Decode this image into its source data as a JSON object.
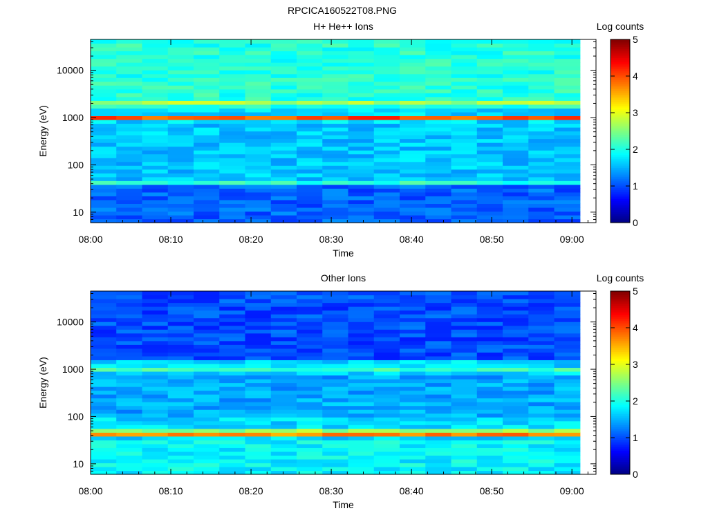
{
  "figure_title": "RPCICA160522T08.PNG",
  "chart_data": [
    {
      "type": "heatmap",
      "title": "H+ He++ Ions",
      "xlabel": "Time",
      "ylabel": "Energy (eV)",
      "yscale": "log",
      "ylim": [
        6,
        45000
      ],
      "xlim": [
        "08:00",
        "09:03"
      ],
      "x_ticks": [
        "08:00",
        "08:10",
        "08:20",
        "08:30",
        "08:40",
        "08:50",
        "09:00"
      ],
      "y_ticks": [
        "10",
        "100",
        "1000",
        "10000"
      ],
      "colorbar": {
        "label": "Log counts",
        "range": [
          0,
          5
        ],
        "ticks": [
          "0",
          "1",
          "2",
          "3",
          "4",
          "5"
        ],
        "colormap": "jet"
      },
      "time_bins_end": "09:01",
      "bands": [
        {
          "energy_eV": 1000,
          "log_counts": 4.0,
          "description": "main proton line"
        },
        {
          "energy_eV": 2200,
          "log_counts": 2.9,
          "description": "intermittent secondary line"
        },
        {
          "energy_eV": 45,
          "log_counts": 2.4,
          "description": "low-energy line"
        }
      ],
      "background": [
        {
          "energy_range_eV": [
            6,
            40
          ],
          "log_counts": 1.1
        },
        {
          "energy_range_eV": [
            40,
            800
          ],
          "log_counts": 1.6
        },
        {
          "energy_range_eV": [
            1500,
            45000
          ],
          "log_counts": 2.05
        }
      ]
    },
    {
      "type": "heatmap",
      "title": "Other Ions",
      "xlabel": "Time",
      "ylabel": "Energy (eV)",
      "yscale": "log",
      "ylim": [
        6,
        45000
      ],
      "xlim": [
        "08:00",
        "09:03"
      ],
      "x_ticks": [
        "08:00",
        "08:10",
        "08:20",
        "08:30",
        "08:40",
        "08:50",
        "09:00"
      ],
      "y_ticks": [
        "10",
        "100",
        "1000",
        "10000"
      ],
      "colorbar": {
        "label": "Log counts",
        "range": [
          0,
          5
        ],
        "ticks": [
          "0",
          "1",
          "2",
          "3",
          "4",
          "5"
        ],
        "colormap": "jet"
      },
      "time_bins_end": "09:01",
      "bands": [
        {
          "energy_eV": 45,
          "log_counts": 4.2,
          "description": "strong low-energy line"
        },
        {
          "energy_eV": 1000,
          "log_counts": 2.2,
          "description": "secondary line"
        }
      ],
      "background": [
        {
          "energy_range_eV": [
            6,
            30
          ],
          "log_counts": 1.85
        },
        {
          "energy_range_eV": [
            100,
            800
          ],
          "log_counts": 1.45
        },
        {
          "energy_range_eV": [
            1500,
            45000
          ],
          "log_counts": 1.0
        }
      ]
    }
  ]
}
